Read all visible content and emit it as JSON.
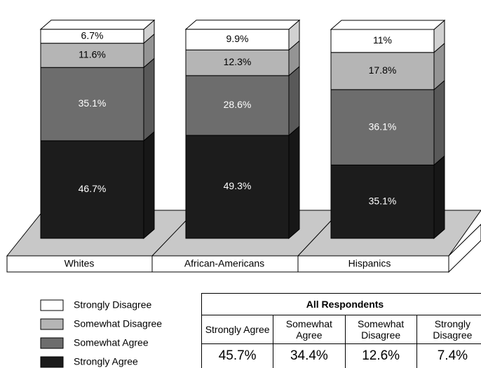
{
  "chart_data": {
    "type": "stacked-bar-3d",
    "categories": [
      "Whites",
      "African-Americans",
      "Hispanics"
    ],
    "series": [
      {
        "name": "Strongly Agree",
        "color": "#1c1c1c",
        "values": [
          46.7,
          49.3,
          35.1
        ],
        "value_labels": [
          "46.7%",
          "49.3%",
          "35.1%"
        ]
      },
      {
        "name": "Somewhat Agree",
        "color": "#6d6d6d",
        "values": [
          35.1,
          28.6,
          36.1
        ],
        "value_labels": [
          "35.1%",
          "28.6%",
          "36.1%"
        ]
      },
      {
        "name": "Somewhat Disagree",
        "color": "#b5b5b5",
        "values": [
          11.6,
          12.3,
          17.8
        ],
        "value_labels": [
          "11.6%",
          "12.3%",
          "17.8%"
        ]
      },
      {
        "name": "Strongly Disagree",
        "color": "#ffffff",
        "values": [
          6.7,
          9.9,
          11
        ],
        "value_labels": [
          "6.7%",
          "9.9%",
          "11%"
        ]
      }
    ],
    "summary": {
      "title": "All Respondents",
      "columns": [
        "Strongly Agree",
        "Somewhat Agree",
        "Somewhat Disagree",
        "Strongly Disagree"
      ],
      "values": [
        45.7,
        34.4,
        12.6,
        7.4
      ],
      "value_labels": [
        "45.7%",
        "34.4%",
        "12.6%",
        "7.4%"
      ]
    }
  }
}
